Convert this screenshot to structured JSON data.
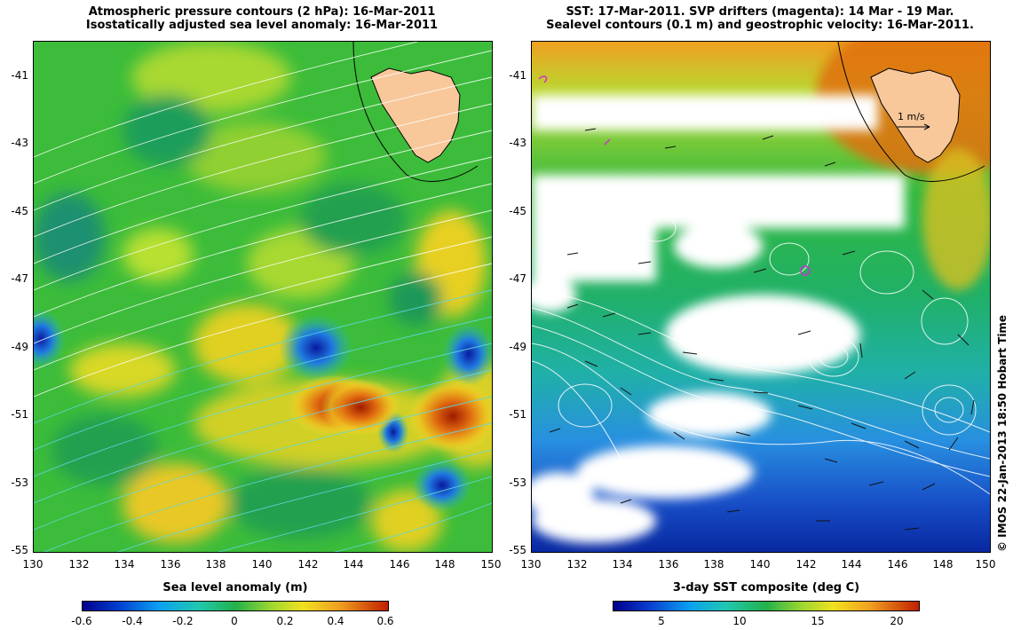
{
  "left_panel": {
    "title_line1": "Atmospheric pressure contours (2 hPa): 16-Mar-2011",
    "title_line2": "Isostatically adjusted sea level anomaly: 16-Mar-2011",
    "colorbar_title": "Sea level anomaly (m)",
    "colorbar_ticks": [
      "-0.6",
      "-0.4",
      "-0.2",
      "0",
      "0.2",
      "0.4",
      "0.6"
    ],
    "x_ticks": [
      "130",
      "132",
      "134",
      "136",
      "138",
      "140",
      "142",
      "144",
      "146",
      "148",
      "150"
    ],
    "y_ticks": [
      "-41",
      "-43",
      "-45",
      "-47",
      "-49",
      "-51",
      "-53",
      "-55"
    ],
    "lon_range": [
      130,
      150
    ],
    "lat_range": [
      -55,
      -40
    ],
    "colors": {
      "low": "#00008b",
      "mid": "#22b14c",
      "high": "#b22200"
    }
  },
  "right_panel": {
    "title_line1": "SST: 17-Mar-2011. SVP drifters (magenta): 14 Mar - 19 Mar.",
    "title_line2": "Sealevel contours (0.1 m) and geostrophic velocity: 16-Mar-2011.",
    "colorbar_title": "3-day SST composite (deg C)",
    "colorbar_ticks": [
      "5",
      "10",
      "15",
      "20"
    ],
    "x_ticks": [
      "130",
      "132",
      "134",
      "136",
      "138",
      "140",
      "142",
      "144",
      "146",
      "148",
      "150"
    ],
    "y_ticks": [
      "-41",
      "-43",
      "-45",
      "-47",
      "-49",
      "-51",
      "-53",
      "-55"
    ],
    "velocity_scale_label": "1 m/s",
    "lon_range": [
      130,
      150
    ],
    "lat_range": [
      -55,
      -40
    ],
    "colors": {
      "land": "#f8c89a",
      "drifters": "#cc33cc"
    }
  },
  "credit": "© IMOS 22-Jan-2013 18:50 Hobart Time"
}
